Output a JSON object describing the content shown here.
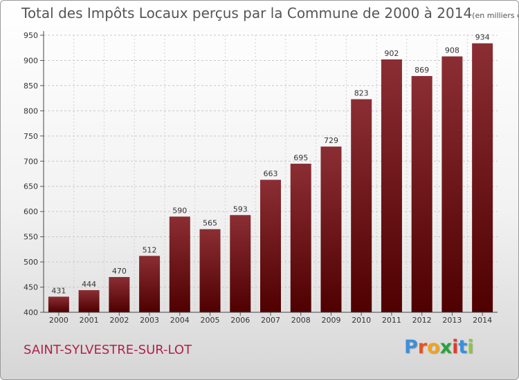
{
  "title": "Total des Impôts Locaux perçus par la Commune de 2000 à 2014",
  "title_unit": "(en milliers d'€)",
  "commune_name": "SAINT-SYLVESTRE-SUR-LOT",
  "logo": {
    "letters": [
      "P",
      "r",
      "o",
      "x",
      "i",
      "t",
      "i"
    ],
    "colors": [
      "#3c8fd8",
      "#e8531f",
      "#f2a31c",
      "#2aa33a",
      "#e23a2b",
      "#3c8fd8",
      "#8cc63f"
    ]
  },
  "chart_data": {
    "type": "bar",
    "title": "Total des Impôts Locaux perçus par la Commune de 2000 à 2014",
    "categories": [
      "2000",
      "2001",
      "2002",
      "2003",
      "2004",
      "2005",
      "2006",
      "2007",
      "2008",
      "2009",
      "2010",
      "2011",
      "2012",
      "2013",
      "2014"
    ],
    "values": [
      431,
      444,
      470,
      512,
      590,
      565,
      593,
      663,
      695,
      729,
      823,
      902,
      869,
      908,
      934
    ],
    "ylim": [
      400,
      950
    ],
    "yticks": [
      400,
      450,
      500,
      550,
      600,
      650,
      700,
      750,
      800,
      850,
      900,
      950
    ],
    "grid": true,
    "bar_color_top": "#8b2e34",
    "bar_color_bottom": "#4f0000"
  }
}
